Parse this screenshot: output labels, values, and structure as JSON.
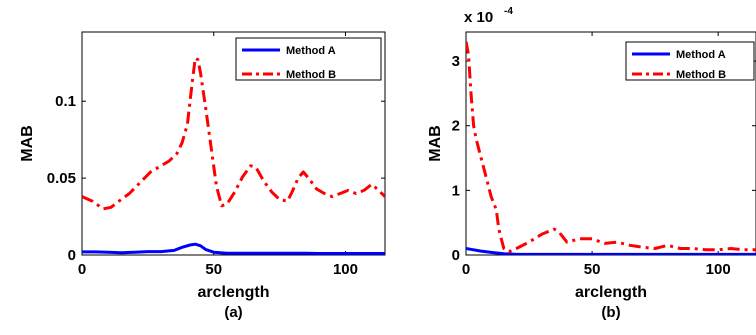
{
  "chart_data": [
    {
      "type": "line",
      "subplot_label": "(a)",
      "xlabel": "arclength",
      "ylabel": "MAB",
      "xlim": [
        0,
        115
      ],
      "ylim": [
        0,
        0.145
      ],
      "xticks": [
        0,
        50,
        100
      ],
      "yticks": [
        0,
        0.05,
        0.1
      ],
      "xtick_labels": [
        "0",
        "50",
        "100"
      ],
      "ytick_labels": [
        "0",
        "0.05",
        "0.1"
      ],
      "legend_position": "top-right",
      "series": [
        {
          "name": "Method A",
          "color": "#0000ff",
          "style": "solid",
          "points": [
            [
              0,
              0.002
            ],
            [
              5,
              0.002
            ],
            [
              10,
              0.0018
            ],
            [
              15,
              0.0015
            ],
            [
              20,
              0.0018
            ],
            [
              25,
              0.0022
            ],
            [
              30,
              0.0022
            ],
            [
              35,
              0.003
            ],
            [
              38,
              0.005
            ],
            [
              41,
              0.0065
            ],
            [
              43,
              0.007
            ],
            [
              45,
              0.006
            ],
            [
              47,
              0.0035
            ],
            [
              50,
              0.0018
            ],
            [
              55,
              0.0012
            ],
            [
              60,
              0.0012
            ],
            [
              65,
              0.0012
            ],
            [
              70,
              0.0012
            ],
            [
              75,
              0.0011
            ],
            [
              80,
              0.0011
            ],
            [
              85,
              0.0011
            ],
            [
              90,
              0.001
            ],
            [
              95,
              0.001
            ],
            [
              100,
              0.001
            ],
            [
              105,
              0.001
            ],
            [
              110,
              0.001
            ],
            [
              115,
              0.001
            ]
          ]
        },
        {
          "name": "Method B",
          "color": "#ff0000",
          "style": "dashdot",
          "points": [
            [
              0,
              0.038
            ],
            [
              4,
              0.035
            ],
            [
              8,
              0.03
            ],
            [
              11,
              0.031
            ],
            [
              14,
              0.035
            ],
            [
              18,
              0.04
            ],
            [
              22,
              0.047
            ],
            [
              26,
              0.054
            ],
            [
              30,
              0.058
            ],
            [
              33,
              0.061
            ],
            [
              36,
              0.066
            ],
            [
              38,
              0.073
            ],
            [
              40,
              0.085
            ],
            [
              42,
              0.115
            ],
            [
              43,
              0.128
            ],
            [
              44,
              0.127
            ],
            [
              45,
              0.118
            ],
            [
              47,
              0.095
            ],
            [
              49,
              0.07
            ],
            [
              51,
              0.045
            ],
            [
              53,
              0.032
            ],
            [
              55,
              0.033
            ],
            [
              58,
              0.041
            ],
            [
              61,
              0.051
            ],
            [
              64,
              0.058
            ],
            [
              66,
              0.057
            ],
            [
              69,
              0.048
            ],
            [
              72,
              0.041
            ],
            [
              75,
              0.036
            ],
            [
              78,
              0.035
            ],
            [
              80,
              0.042
            ],
            [
              82,
              0.05
            ],
            [
              84,
              0.054
            ],
            [
              86,
              0.05
            ],
            [
              89,
              0.043
            ],
            [
              92,
              0.04
            ],
            [
              95,
              0.038
            ],
            [
              98,
              0.04
            ],
            [
              101,
              0.042
            ],
            [
              104,
              0.04
            ],
            [
              107,
              0.042
            ],
            [
              110,
              0.046
            ],
            [
              112,
              0.043
            ],
            [
              115,
              0.038
            ]
          ]
        }
      ]
    },
    {
      "type": "line",
      "subplot_label": "(b)",
      "xlabel": "arclength",
      "ylabel": "MAB",
      "scale_prefix": "x 10",
      "scale_exponent": "-4",
      "xlim": [
        0,
        115
      ],
      "ylim": [
        0,
        3.45
      ],
      "xticks": [
        0,
        50,
        100
      ],
      "yticks": [
        0,
        1,
        2,
        3
      ],
      "xtick_labels": [
        "0",
        "50",
        "100"
      ],
      "ytick_labels": [
        "0",
        "1",
        "2",
        "3"
      ],
      "legend_position": "top-right",
      "series": [
        {
          "name": "Method A",
          "color": "#0000ff",
          "style": "solid",
          "points": [
            [
              0,
              0.1
            ],
            [
              3,
              0.08
            ],
            [
              6,
              0.06
            ],
            [
              10,
              0.04
            ],
            [
              15,
              0.02
            ],
            [
              20,
              0.01
            ],
            [
              30,
              0.01
            ],
            [
              40,
              0.01
            ],
            [
              50,
              0.01
            ],
            [
              60,
              0.01
            ],
            [
              70,
              0.01
            ],
            [
              80,
              0.01
            ],
            [
              90,
              0.01
            ],
            [
              100,
              0.01
            ],
            [
              110,
              0.01
            ],
            [
              115,
              0.01
            ]
          ]
        },
        {
          "name": "Method B",
          "color": "#ff0000",
          "style": "dashdot",
          "points": [
            [
              0,
              3.3
            ],
            [
              1,
              3.1
            ],
            [
              2,
              2.5
            ],
            [
              3,
              2.0
            ],
            [
              4,
              1.8
            ],
            [
              6,
              1.5
            ],
            [
              8,
              1.2
            ],
            [
              10,
              0.9
            ],
            [
              12,
              0.7
            ],
            [
              13,
              0.4
            ],
            [
              15,
              0.1
            ],
            [
              17,
              0.05
            ],
            [
              20,
              0.1
            ],
            [
              25,
              0.2
            ],
            [
              30,
              0.32
            ],
            [
              35,
              0.4
            ],
            [
              37,
              0.35
            ],
            [
              40,
              0.2
            ],
            [
              45,
              0.25
            ],
            [
              50,
              0.25
            ],
            [
              55,
              0.18
            ],
            [
              60,
              0.2
            ],
            [
              65,
              0.15
            ],
            [
              70,
              0.12
            ],
            [
              75,
              0.1
            ],
            [
              80,
              0.15
            ],
            [
              85,
              0.1
            ],
            [
              90,
              0.1
            ],
            [
              95,
              0.08
            ],
            [
              100,
              0.08
            ],
            [
              105,
              0.1
            ],
            [
              110,
              0.08
            ],
            [
              115,
              0.08
            ]
          ]
        }
      ]
    }
  ]
}
